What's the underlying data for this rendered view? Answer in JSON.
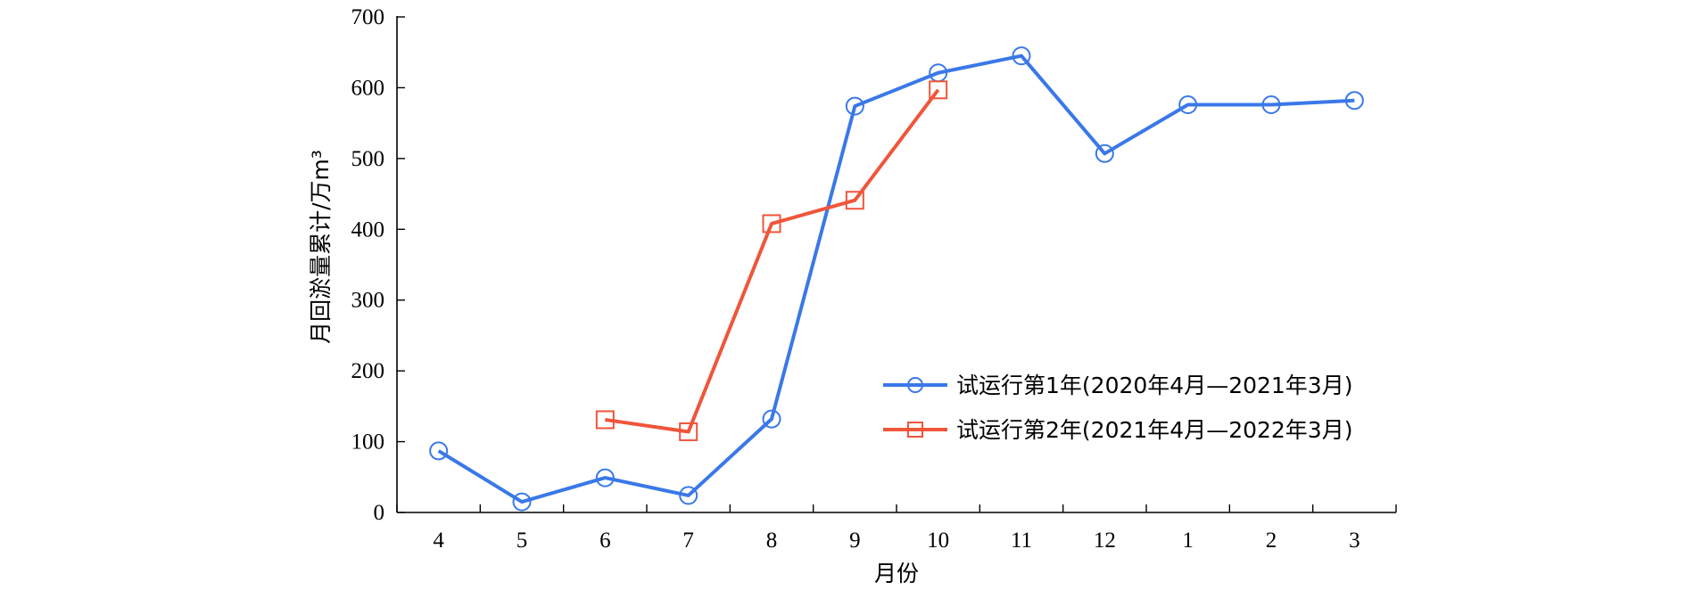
{
  "chart_data": {
    "type": "line",
    "xlabel": "月份",
    "ylabel": "月回淤量累计/万m³",
    "categories": [
      "4",
      "5",
      "6",
      "7",
      "8",
      "9",
      "10",
      "11",
      "12",
      "1",
      "2",
      "3"
    ],
    "ylim": [
      0,
      700
    ],
    "yticks": [
      0,
      100,
      200,
      300,
      400,
      500,
      600,
      700
    ],
    "grid": false,
    "legend_position": "right",
    "series": [
      {
        "name": "试运行第1年(2020年4月—2021年3月)",
        "color": "#3a78e8",
        "marker": "circle",
        "values": [
          87,
          15,
          49,
          24,
          132,
          574,
          621,
          645,
          507,
          576,
          576,
          582
        ]
      },
      {
        "name": "试运行第2年(2021年4月—2022年3月)",
        "color": "#f0553a",
        "marker": "square",
        "values": [
          null,
          null,
          131,
          114,
          408,
          441,
          597,
          null,
          null,
          null,
          null,
          null
        ]
      }
    ]
  }
}
